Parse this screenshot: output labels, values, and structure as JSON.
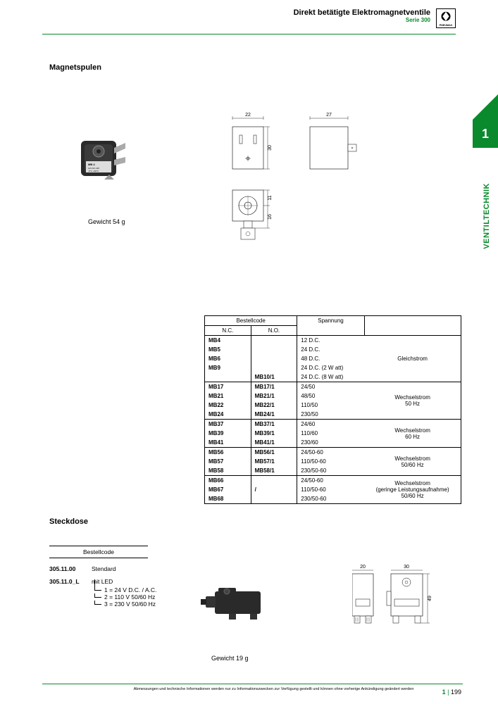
{
  "header": {
    "title": "Direkt betätigte Elektromagnetventile",
    "series": "Serie 300"
  },
  "sidebar": {
    "section_number": "1",
    "section_label": "VENTILTECHNIK"
  },
  "magnet": {
    "heading": "Magnetspulen",
    "weight": "Gewicht 54 g",
    "dims": {
      "w1": "22",
      "w2": "27",
      "h": "30",
      "d1": "11",
      "d2": "16"
    }
  },
  "table": {
    "header_bestell": "Bestellcode",
    "header_nc": "N.C.",
    "header_no": "N.O.",
    "header_spannung": "Spannung",
    "groups": [
      {
        "rows": [
          {
            "nc": "MB4",
            "no": "",
            "v": "12 D.C."
          },
          {
            "nc": "MB5",
            "no": "",
            "v": "24 D.C."
          },
          {
            "nc": "MB6",
            "no": "",
            "v": "48 D.C."
          },
          {
            "nc": "MB9",
            "no": "",
            "v": "24 D.C. (2 W att)"
          },
          {
            "nc": "",
            "no": "MB10/1",
            "v": "24 D.C. (8 W att)"
          }
        ],
        "type_lines": [
          "Gleichstrom"
        ]
      },
      {
        "rows": [
          {
            "nc": "MB17",
            "no": "MB17/1",
            "v": "24/50"
          },
          {
            "nc": "MB21",
            "no": "MB21/1",
            "v": "48/50"
          },
          {
            "nc": "MB22",
            "no": "MB22/1",
            "v": "110/50"
          },
          {
            "nc": "MB24",
            "no": "MB24/1",
            "v": "230/50"
          }
        ],
        "type_lines": [
          "Wechselstrom",
          "50 Hz"
        ]
      },
      {
        "rows": [
          {
            "nc": "MB37",
            "no": "MB37/1",
            "v": "24/60"
          },
          {
            "nc": "MB39",
            "no": "MB39/1",
            "v": "110/60"
          },
          {
            "nc": "MB41",
            "no": "MB41/1",
            "v": "230/60"
          }
        ],
        "type_lines": [
          "Wechselstrom",
          "60 Hz"
        ]
      },
      {
        "rows": [
          {
            "nc": "MB56",
            "no": "MB56/1",
            "v": "24/50-60"
          },
          {
            "nc": "MB57",
            "no": "MB57/1",
            "v": "110/50-60"
          },
          {
            "nc": "MB58",
            "no": "MB58/1",
            "v": "230/50-60"
          }
        ],
        "type_lines": [
          "Wechselstrom",
          "50/60 Hz"
        ]
      },
      {
        "rows": [
          {
            "nc": "MB66",
            "no": "",
            "v": "24/50-60"
          },
          {
            "nc": "MB67",
            "no": "/",
            "v": "110/50-60"
          },
          {
            "nc": "MB68",
            "no": "",
            "v": "230/50-60"
          }
        ],
        "type_lines": [
          "Wechselstrom",
          "(geringe Leistungsaufnahme)",
          "50/60 Hz"
        ]
      }
    ]
  },
  "steckdose": {
    "heading": "Steckdose",
    "header": "Bestellcode",
    "row1_code": "305.11.00",
    "row1_desc": "Stendard",
    "row2_code": "305.11.0_L",
    "row2_desc": "mit LED",
    "led": [
      "1 = 24  V D.C. / A.C.",
      "2 = 110 V 50/60 Hz",
      "3 = 230 V 50/60 Hz"
    ],
    "weight": "Gewicht 19 g",
    "dims": {
      "w1": "20",
      "w2": "30",
      "h": "49"
    }
  },
  "footer": {
    "disclaimer": "Abmessungen und technische Informationen werden nur zu Informationszwecken zur Verfügung gestellt und können ohne vorherige Ankündigung geändert werden",
    "section": "1",
    "page": "199"
  },
  "colors": {
    "accent": "#0a8a2c"
  }
}
